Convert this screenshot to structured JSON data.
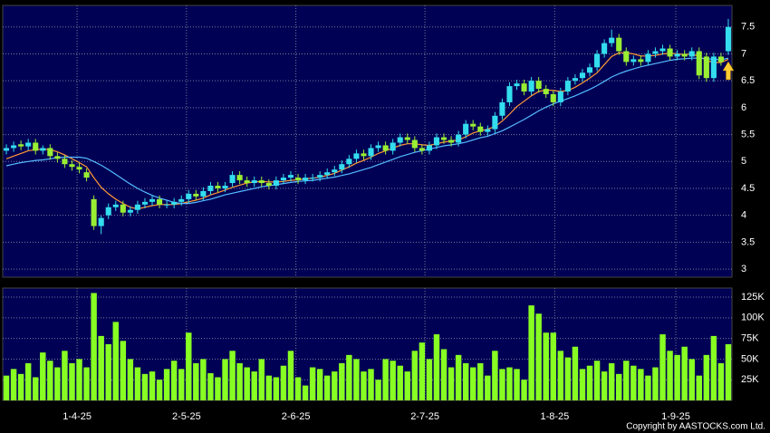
{
  "chart_data": {
    "type": "candlestick",
    "xlim": [
      -0.5,
      99.5
    ],
    "xticks": [
      {
        "value": 9.7,
        "label": "1-4-25"
      },
      {
        "value": 24.7,
        "label": "2-5-25"
      },
      {
        "value": 39.7,
        "label": "2-6-25"
      },
      {
        "value": 57.4,
        "label": "2-7-25"
      },
      {
        "value": 75.2,
        "label": "1-8-25"
      },
      {
        "value": 91.8,
        "label": "1-9-25"
      }
    ],
    "ylim": [
      2.85,
      7.9
    ],
    "yticks": [
      3,
      3.5,
      4,
      4.5,
      5,
      5.5,
      6,
      6.5,
      7,
      7.5
    ],
    "grid": true,
    "up_color": "#33ddee",
    "down_color": "#99ee33",
    "open": [
      5.2,
      5.25,
      5.32,
      5.28,
      5.35,
      5.2,
      5.25,
      5.1,
      5.05,
      4.95,
      4.9,
      4.8,
      4.3,
      3.8,
      4.0,
      4.15,
      4.2,
      4.05,
      4.1,
      4.2,
      4.25,
      4.3,
      4.2,
      4.2,
      4.25,
      4.3,
      4.4,
      4.35,
      4.45,
      4.55,
      4.5,
      4.6,
      4.75,
      4.65,
      4.6,
      4.65,
      4.6,
      4.55,
      4.65,
      4.7,
      4.7,
      4.65,
      4.7,
      4.7,
      4.75,
      4.8,
      4.85,
      4.95,
      5.05,
      5.15,
      5.1,
      5.25,
      5.3,
      5.2,
      5.35,
      5.45,
      5.4,
      5.25,
      5.2,
      5.3,
      5.45,
      5.4,
      5.35,
      5.5,
      5.7,
      5.65,
      5.55,
      5.6,
      5.85,
      6.1,
      6.4,
      6.45,
      6.3,
      6.5,
      6.35,
      6.25,
      6.1,
      6.3,
      6.5,
      6.55,
      6.65,
      6.75,
      7.0,
      7.2,
      7.3,
      7.05,
      6.85,
      6.9,
      6.85,
      7.0,
      7.05,
      7.1,
      6.95,
      7.0,
      6.95,
      7.05,
      6.95,
      6.55,
      6.95,
      7.05
    ],
    "high": [
      5.32,
      5.37,
      5.39,
      5.42,
      5.42,
      5.3,
      5.32,
      5.17,
      5.12,
      5.02,
      4.97,
      4.87,
      4.37,
      4.0,
      4.22,
      4.27,
      4.27,
      4.17,
      4.27,
      4.32,
      4.37,
      4.37,
      4.27,
      4.32,
      4.37,
      4.47,
      4.47,
      4.52,
      4.62,
      4.62,
      4.62,
      4.82,
      4.82,
      4.72,
      4.72,
      4.72,
      4.67,
      4.72,
      4.77,
      4.82,
      4.77,
      4.77,
      4.77,
      4.82,
      4.87,
      4.92,
      5.02,
      5.12,
      5.22,
      5.22,
      5.32,
      5.37,
      5.37,
      5.42,
      5.52,
      5.52,
      5.47,
      5.32,
      5.37,
      5.52,
      5.52,
      5.47,
      5.57,
      5.77,
      5.77,
      5.72,
      5.67,
      5.92,
      6.17,
      6.47,
      6.52,
      6.52,
      6.57,
      6.57,
      6.42,
      6.32,
      6.37,
      6.57,
      6.62,
      6.72,
      6.82,
      7.07,
      7.27,
      7.45,
      7.37,
      7.12,
      6.97,
      6.97,
      7.07,
      7.12,
      7.17,
      7.17,
      7.07,
      7.07,
      7.12,
      7.12,
      7.02,
      7.02,
      7.02,
      7.65
    ],
    "low": [
      5.13,
      5.18,
      5.21,
      5.21,
      5.13,
      5.13,
      5.03,
      4.98,
      4.88,
      4.83,
      4.78,
      4.63,
      3.73,
      3.65,
      3.93,
      4.08,
      3.98,
      3.98,
      4.03,
      4.13,
      4.18,
      4.13,
      4.13,
      4.13,
      4.18,
      4.23,
      4.28,
      4.28,
      4.38,
      4.43,
      4.43,
      4.53,
      4.58,
      4.53,
      4.53,
      4.53,
      4.48,
      4.48,
      4.58,
      4.63,
      4.58,
      4.58,
      4.63,
      4.63,
      4.68,
      4.73,
      4.78,
      4.88,
      4.98,
      5.03,
      5.03,
      5.18,
      5.13,
      5.13,
      5.28,
      5.33,
      5.18,
      5.13,
      5.13,
      5.23,
      5.33,
      5.28,
      5.28,
      5.43,
      5.58,
      5.48,
      5.48,
      5.53,
      5.78,
      6.03,
      6.33,
      6.23,
      6.23,
      6.28,
      6.18,
      6.03,
      6.03,
      6.23,
      6.43,
      6.48,
      6.58,
      6.68,
      6.93,
      7.13,
      6.98,
      6.78,
      6.78,
      6.78,
      6.78,
      6.93,
      6.98,
      6.88,
      6.88,
      6.88,
      6.88,
      6.53,
      6.48,
      6.48,
      6.78,
      6.98
    ],
    "close": [
      5.25,
      5.3,
      5.28,
      5.35,
      5.2,
      5.25,
      5.1,
      5.05,
      4.95,
      4.9,
      4.85,
      4.7,
      3.8,
      3.95,
      4.15,
      4.2,
      4.05,
      4.1,
      4.2,
      4.25,
      4.3,
      4.2,
      4.2,
      4.25,
      4.3,
      4.4,
      4.35,
      4.45,
      4.55,
      4.5,
      4.55,
      4.75,
      4.65,
      4.6,
      4.65,
      4.6,
      4.55,
      4.65,
      4.7,
      4.75,
      4.65,
      4.7,
      4.7,
      4.75,
      4.8,
      4.85,
      4.95,
      5.05,
      5.15,
      5.1,
      5.25,
      5.3,
      5.2,
      5.35,
      5.45,
      5.4,
      5.25,
      5.2,
      5.3,
      5.45,
      5.4,
      5.35,
      5.5,
      5.7,
      5.65,
      5.55,
      5.6,
      5.85,
      6.1,
      6.4,
      6.45,
      6.3,
      6.5,
      6.35,
      6.25,
      6.1,
      6.3,
      6.5,
      6.55,
      6.65,
      6.75,
      7.0,
      7.2,
      7.3,
      7.05,
      6.85,
      6.9,
      6.85,
      7.0,
      7.05,
      7.1,
      6.95,
      7.0,
      6.95,
      7.05,
      6.6,
      6.55,
      6.95,
      6.85,
      7.5
    ],
    "lines": [
      {
        "color": "#ff9933",
        "values": [
          5.05,
          5.1,
          5.15,
          5.2,
          5.22,
          5.23,
          5.22,
          5.18,
          5.12,
          5.05,
          4.98,
          4.9,
          4.7,
          4.52,
          4.4,
          4.3,
          4.22,
          4.15,
          4.12,
          4.15,
          4.18,
          4.2,
          4.2,
          4.2,
          4.22,
          4.25,
          4.28,
          4.32,
          4.38,
          4.42,
          4.47,
          4.52,
          4.56,
          4.6,
          4.62,
          4.63,
          4.62,
          4.62,
          4.63,
          4.65,
          4.66,
          4.68,
          4.69,
          4.71,
          4.74,
          4.78,
          4.84,
          4.9,
          4.97,
          5.02,
          5.08,
          5.15,
          5.2,
          5.25,
          5.3,
          5.33,
          5.33,
          5.31,
          5.3,
          5.33,
          5.36,
          5.38,
          5.4,
          5.46,
          5.53,
          5.57,
          5.6,
          5.65,
          5.75,
          5.88,
          6.02,
          6.12,
          6.22,
          6.3,
          6.33,
          6.32,
          6.3,
          6.32,
          6.38,
          6.46,
          6.55,
          6.65,
          6.8,
          6.95,
          7.02,
          7.02,
          7.0,
          6.96,
          6.96,
          6.97,
          7.0,
          7.01,
          7.0,
          6.99,
          7.0,
          6.95,
          6.88,
          6.84,
          6.84,
          6.9
        ]
      },
      {
        "color": "#55bbff",
        "values": [
          4.92,
          4.95,
          4.98,
          5.0,
          5.02,
          5.03,
          5.05,
          5.07,
          5.08,
          5.08,
          5.08,
          5.06,
          5.0,
          4.93,
          4.85,
          4.76,
          4.67,
          4.58,
          4.5,
          4.43,
          4.37,
          4.32,
          4.28,
          4.24,
          4.22,
          4.22,
          4.24,
          4.27,
          4.3,
          4.34,
          4.38,
          4.41,
          4.44,
          4.47,
          4.5,
          4.53,
          4.55,
          4.57,
          4.59,
          4.61,
          4.63,
          4.64,
          4.65,
          4.67,
          4.69,
          4.71,
          4.74,
          4.77,
          4.81,
          4.85,
          4.89,
          4.94,
          4.99,
          5.04,
          5.09,
          5.13,
          5.17,
          5.2,
          5.23,
          5.26,
          5.29,
          5.31,
          5.33,
          5.36,
          5.4,
          5.44,
          5.47,
          5.52,
          5.57,
          5.64,
          5.71,
          5.78,
          5.86,
          5.94,
          6.01,
          6.07,
          6.12,
          6.17,
          6.22,
          6.28,
          6.34,
          6.41,
          6.49,
          6.57,
          6.63,
          6.68,
          6.72,
          6.76,
          6.79,
          6.82,
          6.85,
          6.88,
          6.9,
          6.91,
          6.92,
          6.92,
          6.91,
          6.9,
          6.89,
          6.92
        ]
      }
    ],
    "volume": {
      "color": "#88ff22",
      "ylim": [
        0,
        136
      ],
      "yticks": [
        {
          "value": 25,
          "label": "25K"
        },
        {
          "value": 50,
          "label": "50K"
        },
        {
          "value": 75,
          "label": "75K"
        },
        {
          "value": 100,
          "label": "100K"
        },
        {
          "value": 125,
          "label": "125K"
        }
      ],
      "values": [
        30,
        38,
        32,
        45,
        28,
        58,
        48,
        40,
        60,
        45,
        50,
        40,
        130,
        78,
        68,
        95,
        72,
        50,
        40,
        32,
        35,
        25,
        38,
        48,
        38,
        82,
        45,
        50,
        33,
        28,
        50,
        60,
        45,
        40,
        35,
        50,
        30,
        28,
        42,
        60,
        28,
        18,
        40,
        38,
        30,
        35,
        45,
        55,
        50,
        35,
        38,
        25,
        50,
        48,
        42,
        35,
        60,
        70,
        50,
        80,
        62,
        40,
        55,
        45,
        40,
        45,
        30,
        60,
        38,
        40,
        38,
        25,
        115,
        105,
        82,
        82,
        60,
        52,
        65,
        38,
        42,
        48,
        35,
        45,
        32,
        48,
        42,
        38,
        30,
        40,
        80,
        60,
        55,
        65,
        50,
        30,
        55,
        78,
        45,
        68
      ]
    }
  },
  "footer": "Copyright by AASTOCKS.com Ltd."
}
